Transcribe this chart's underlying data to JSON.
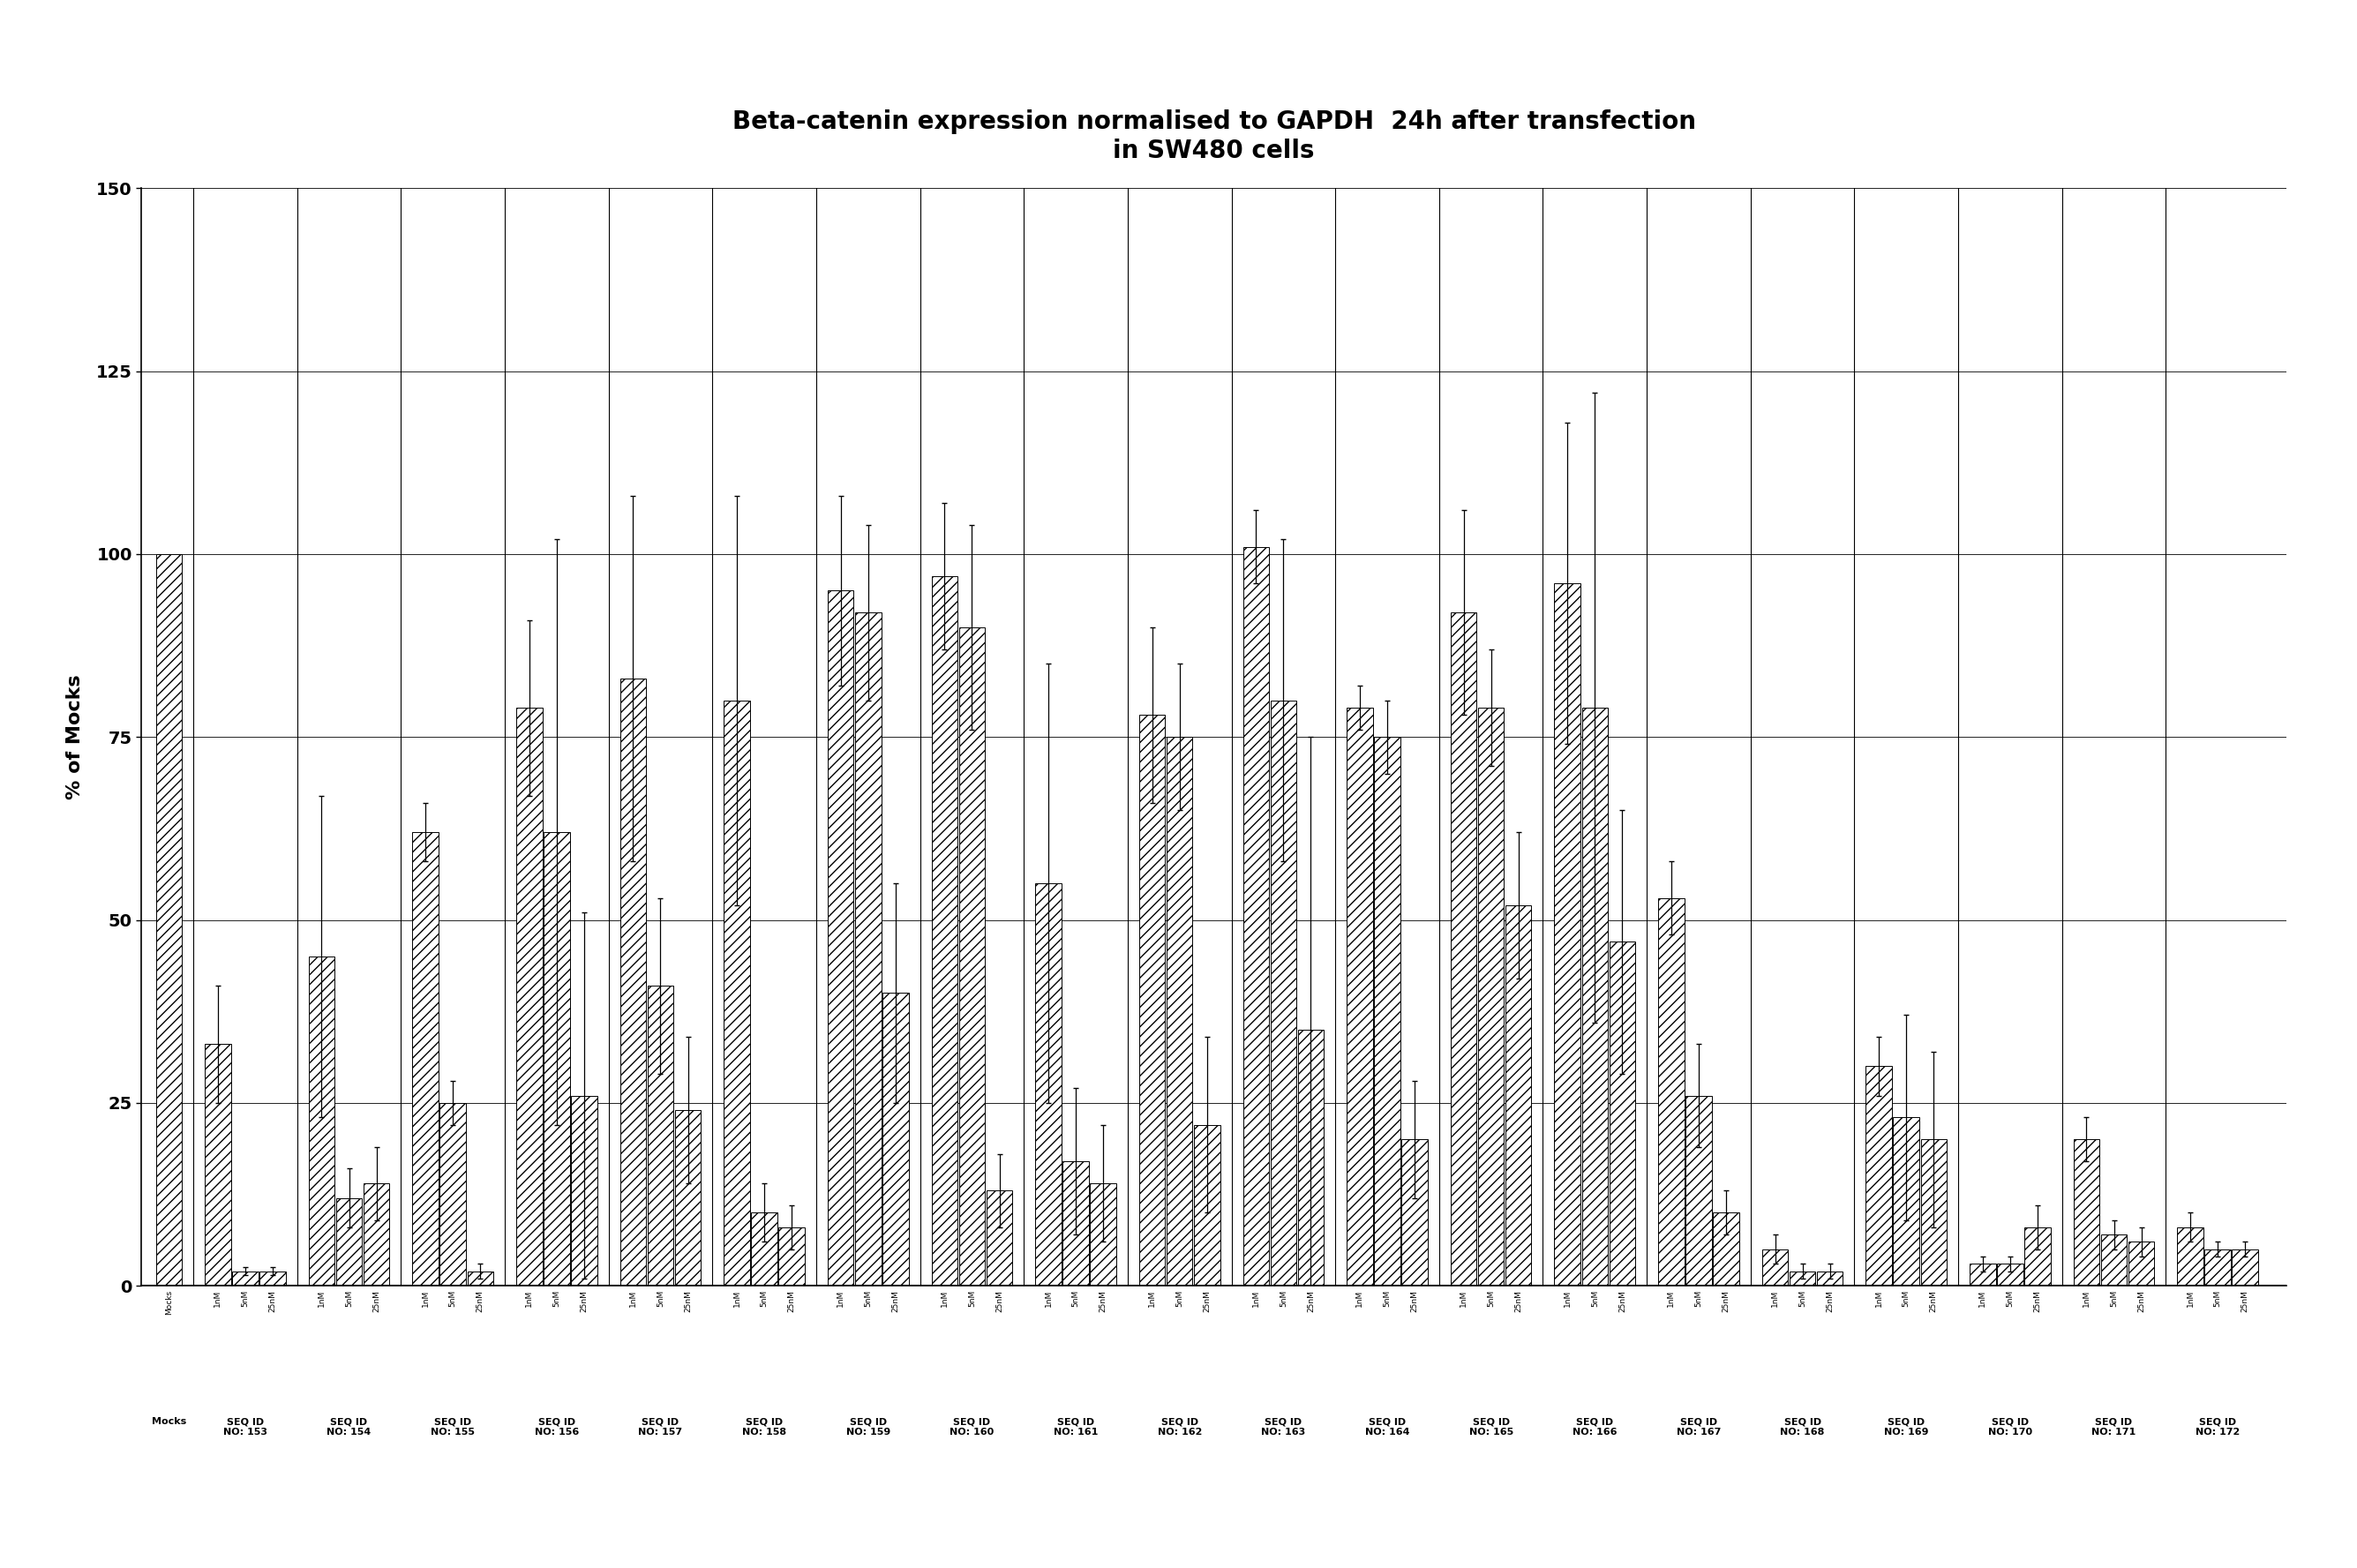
{
  "title_line1": "Beta-catenin expression normalised to GAPDH  24h after transfection",
  "title_line2": "in SW480 cells",
  "ylabel": "% of Mocks",
  "ylim": [
    0,
    150
  ],
  "yticks": [
    0,
    25,
    50,
    75,
    100,
    125,
    150
  ],
  "background_color": "#ffffff",
  "groups": [
    {
      "label": "Mocks",
      "bars": [
        {
          "dose": "Mocks",
          "val": 100,
          "err": 0
        }
      ]
    },
    {
      "label": "SEQ ID\nNO: 153",
      "bars": [
        {
          "dose": "1nM",
          "val": 33,
          "err": 8
        },
        {
          "dose": "5nM",
          "val": 2,
          "err": 0.5
        },
        {
          "dose": "25nM",
          "val": 2,
          "err": 0.5
        }
      ]
    },
    {
      "label": "SEQ ID\nNO: 154",
      "bars": [
        {
          "dose": "1nM",
          "val": 45,
          "err": 22
        },
        {
          "dose": "5nM",
          "val": 12,
          "err": 4
        },
        {
          "dose": "25nM",
          "val": 14,
          "err": 5
        }
      ]
    },
    {
      "label": "SEQ ID\nNO: 155",
      "bars": [
        {
          "dose": "1nM",
          "val": 62,
          "err": 4
        },
        {
          "dose": "5nM",
          "val": 25,
          "err": 3
        },
        {
          "dose": "25nM",
          "val": 2,
          "err": 1
        }
      ]
    },
    {
      "label": "SEQ ID\nNO: 156",
      "bars": [
        {
          "dose": "1nM",
          "val": 79,
          "err": 12
        },
        {
          "dose": "5nM",
          "val": 62,
          "err": 40
        },
        {
          "dose": "25nM",
          "val": 26,
          "err": 25
        }
      ]
    },
    {
      "label": "SEQ ID\nNO: 157",
      "bars": [
        {
          "dose": "1nM",
          "val": 83,
          "err": 25
        },
        {
          "dose": "5nM",
          "val": 41,
          "err": 12
        },
        {
          "dose": "25nM",
          "val": 24,
          "err": 10
        }
      ]
    },
    {
      "label": "SEQ ID\nNO: 158",
      "bars": [
        {
          "dose": "1nM",
          "val": 80,
          "err": 28
        },
        {
          "dose": "5nM",
          "val": 10,
          "err": 4
        },
        {
          "dose": "25nM",
          "val": 8,
          "err": 3
        }
      ]
    },
    {
      "label": "SEQ ID\nNO: 159",
      "bars": [
        {
          "dose": "1nM",
          "val": 95,
          "err": 13
        },
        {
          "dose": "5nM",
          "val": 92,
          "err": 12
        },
        {
          "dose": "25nM",
          "val": 40,
          "err": 15
        }
      ]
    },
    {
      "label": "SEQ ID\nNO: 160",
      "bars": [
        {
          "dose": "1nM",
          "val": 97,
          "err": 10
        },
        {
          "dose": "5nM",
          "val": 90,
          "err": 14
        },
        {
          "dose": "25nM",
          "val": 13,
          "err": 5
        }
      ]
    },
    {
      "label": "SEQ ID\nNO: 161",
      "bars": [
        {
          "dose": "1nM",
          "val": 55,
          "err": 30
        },
        {
          "dose": "5nM",
          "val": 17,
          "err": 10
        },
        {
          "dose": "25nM",
          "val": 14,
          "err": 8
        }
      ]
    },
    {
      "label": "SEQ ID\nNO: 162",
      "bars": [
        {
          "dose": "1nM",
          "val": 78,
          "err": 12
        },
        {
          "dose": "5nM",
          "val": 75,
          "err": 10
        },
        {
          "dose": "25nM",
          "val": 22,
          "err": 12
        }
      ]
    },
    {
      "label": "SEQ ID\nNO: 163",
      "bars": [
        {
          "dose": "1nM",
          "val": 101,
          "err": 5
        },
        {
          "dose": "5nM",
          "val": 80,
          "err": 22
        },
        {
          "dose": "25nM",
          "val": 35,
          "err": 40
        }
      ]
    },
    {
      "label": "SEQ ID\nNO: 164",
      "bars": [
        {
          "dose": "1nM",
          "val": 79,
          "err": 3
        },
        {
          "dose": "5nM",
          "val": 75,
          "err": 5
        },
        {
          "dose": "25nM",
          "val": 20,
          "err": 8
        }
      ]
    },
    {
      "label": "SEQ ID\nNO: 165",
      "bars": [
        {
          "dose": "1nM",
          "val": 92,
          "err": 14
        },
        {
          "dose": "5nM",
          "val": 79,
          "err": 8
        },
        {
          "dose": "25nM",
          "val": 52,
          "err": 10
        }
      ]
    },
    {
      "label": "SEQ ID\nNO: 166",
      "bars": [
        {
          "dose": "1nM",
          "val": 96,
          "err": 22
        },
        {
          "dose": "5nM",
          "val": 79,
          "err": 43
        },
        {
          "dose": "25nM",
          "val": 47,
          "err": 18
        }
      ]
    },
    {
      "label": "SEQ ID\nNO: 167",
      "bars": [
        {
          "dose": "1nM",
          "val": 53,
          "err": 5
        },
        {
          "dose": "5nM",
          "val": 26,
          "err": 7
        },
        {
          "dose": "25nM",
          "val": 10,
          "err": 3
        }
      ]
    },
    {
      "label": "SEQ ID\nNO: 168",
      "bars": [
        {
          "dose": "1nM",
          "val": 5,
          "err": 2
        },
        {
          "dose": "5nM",
          "val": 2,
          "err": 1
        },
        {
          "dose": "25nM",
          "val": 2,
          "err": 1
        }
      ]
    },
    {
      "label": "SEQ ID\nNO: 169",
      "bars": [
        {
          "dose": "1nM",
          "val": 30,
          "err": 4
        },
        {
          "dose": "5nM",
          "val": 23,
          "err": 14
        },
        {
          "dose": "25nM",
          "val": 20,
          "err": 12
        }
      ]
    },
    {
      "label": "SEQ ID\nNO: 170",
      "bars": [
        {
          "dose": "1nM",
          "val": 3,
          "err": 1
        },
        {
          "dose": "5nM",
          "val": 3,
          "err": 1
        },
        {
          "dose": "25nM",
          "val": 8,
          "err": 3
        }
      ]
    },
    {
      "label": "SEQ ID\nNO: 171",
      "bars": [
        {
          "dose": "1nM",
          "val": 20,
          "err": 3
        },
        {
          "dose": "5nM",
          "val": 7,
          "err": 2
        },
        {
          "dose": "25nM",
          "val": 6,
          "err": 2
        }
      ]
    },
    {
      "label": "SEQ ID\nNO: 172",
      "bars": [
        {
          "dose": "1nM",
          "val": 8,
          "err": 2
        },
        {
          "dose": "5nM",
          "val": 5,
          "err": 1
        },
        {
          "dose": "25nM",
          "val": 5,
          "err": 1
        }
      ]
    }
  ]
}
